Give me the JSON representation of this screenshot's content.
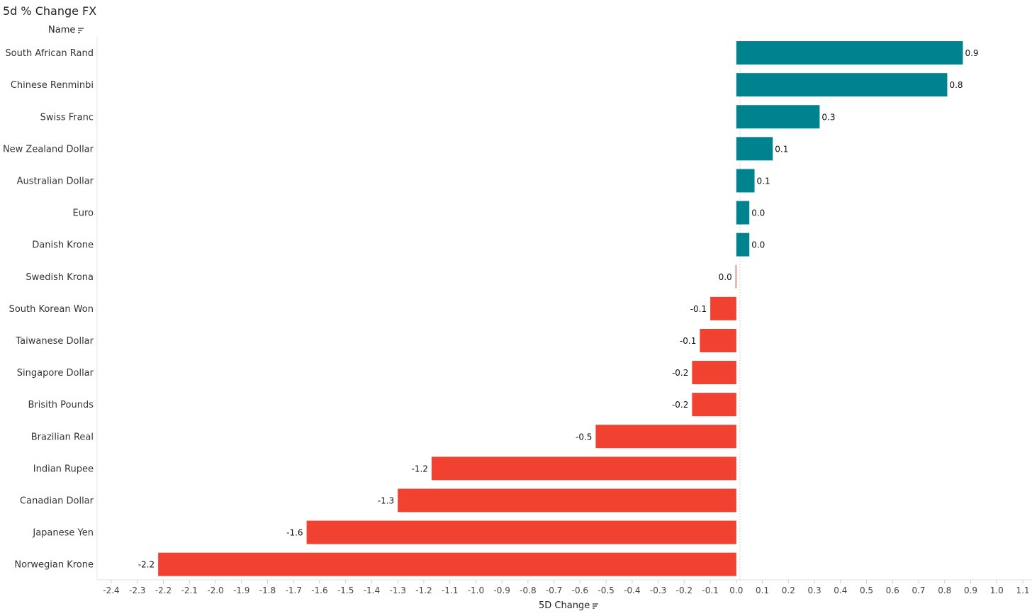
{
  "chart_data": {
    "type": "bar",
    "orientation": "horizontal",
    "title": "5d % Change FX",
    "ylabel": "Name",
    "xlabel": "5D Change",
    "categories": [
      "South African Rand",
      "Chinese Renminbi",
      "Swiss Franc",
      "New Zealand Dollar",
      "Australian Dollar",
      "Euro",
      "Danish Krone",
      "Swedish Krona",
      "South Korean Won",
      "Taiwanese Dollar",
      "Singapore Dollar",
      "Brisith Pounds",
      "Brazilian Real",
      "Indian Rupee",
      "Canadian Dollar",
      "Japanese Yen",
      "Norwegian Krone"
    ],
    "values": [
      0.87,
      0.81,
      0.32,
      0.14,
      0.07,
      0.05,
      0.05,
      -0.003,
      -0.1,
      -0.14,
      -0.17,
      -0.17,
      -0.54,
      -1.17,
      -1.3,
      -1.65,
      -2.22
    ],
    "value_labels": [
      "0.9",
      "0.8",
      "0.3",
      "0.1",
      "0.1",
      "0.0",
      "0.0",
      "0.0",
      "-0.1",
      "-0.1",
      "-0.2",
      "-0.2",
      "-0.5",
      "-1.2",
      "-1.3",
      "-1.6",
      "-2.2"
    ],
    "xlim": [
      -2.4,
      1.1
    ],
    "ticks": [
      "-2.4",
      "-2.3",
      "-2.2",
      "-2.1",
      "-2.0",
      "-1.9",
      "-1.8",
      "-1.7",
      "-1.6",
      "-1.5",
      "-1.4",
      "-1.3",
      "-1.2",
      "-1.1",
      "-1.0",
      "-0.9",
      "-0.8",
      "-0.7",
      "-0.6",
      "-0.5",
      "-0.4",
      "-0.3",
      "-0.2",
      "-0.1",
      "0.0",
      "0.1",
      "0.2",
      "0.3",
      "0.4",
      "0.5",
      "0.6",
      "0.7",
      "0.8",
      "0.9",
      "1.0",
      "1.1"
    ],
    "colors": {
      "positive": "#00838f",
      "negative": "#f04131"
    },
    "grid": false,
    "legend": "none"
  }
}
